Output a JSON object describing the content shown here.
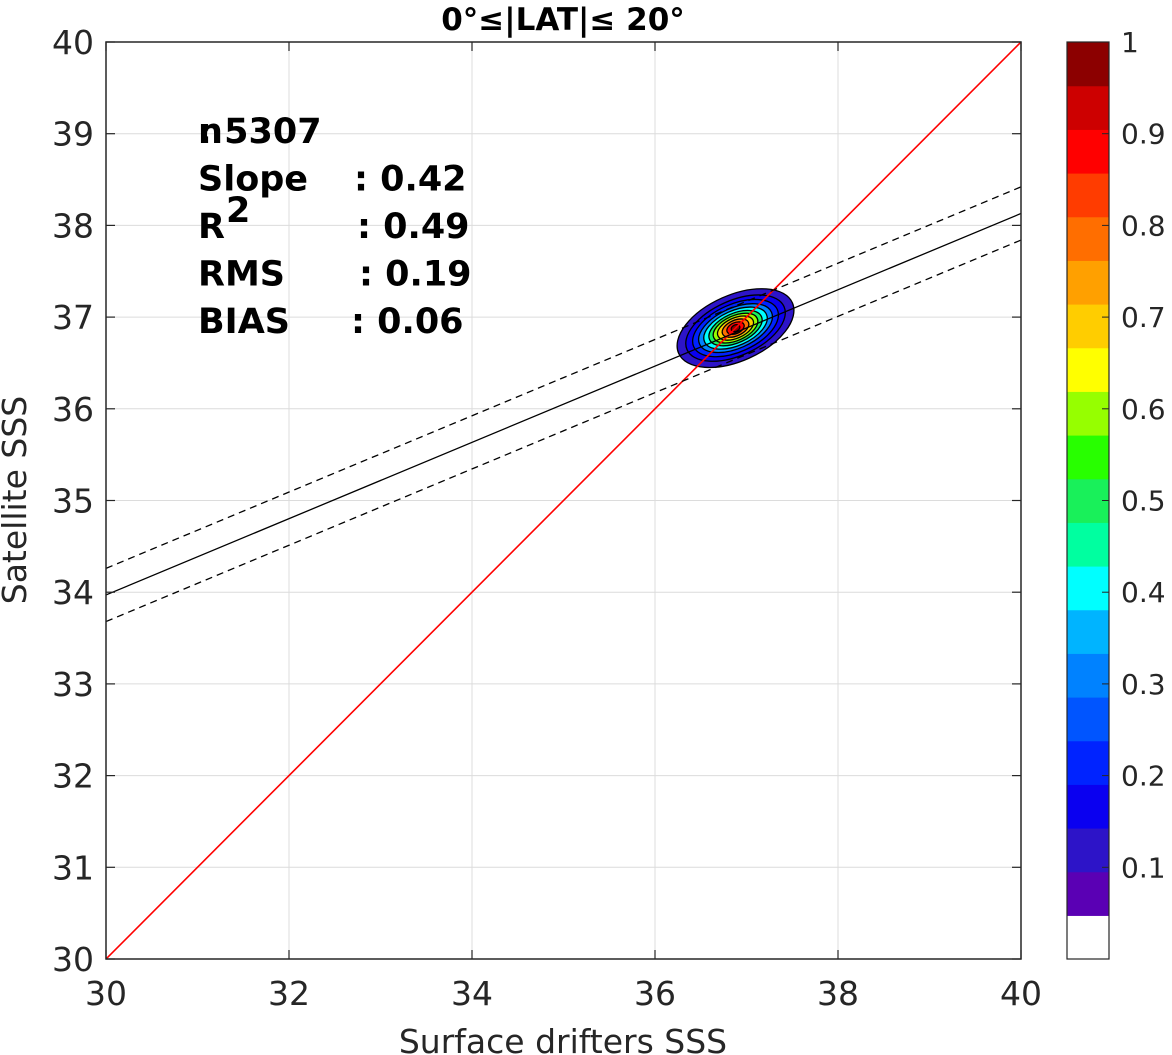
{
  "chart_data": {
    "type": "heatmap",
    "title": "0°≤|LAT|≤ 20°",
    "xlabel": "Surface drifters SSS",
    "ylabel": "Satellite SSS",
    "xlim": [
      30,
      40
    ],
    "ylim": [
      30,
      40
    ],
    "xticks": [
      "30",
      "32",
      "34",
      "36",
      "38",
      "40"
    ],
    "yticks": [
      "30",
      "31",
      "32",
      "33",
      "34",
      "35",
      "36",
      "37",
      "38",
      "39",
      "40"
    ],
    "grid": true,
    "stats": [
      {
        "label": "n",
        "value": ": 5307"
      },
      {
        "label": "Slope",
        "value": ": 0.42"
      },
      {
        "label": "R",
        "sup": "2",
        "value": ": 0.49"
      },
      {
        "label": "RMS",
        "value": ": 0.19"
      },
      {
        "label": "BIAS",
        "value": ": 0.06"
      }
    ],
    "lines": [
      {
        "name": "identity",
        "color": "#ff0000",
        "style": "solid",
        "points": [
          [
            30,
            30
          ],
          [
            40,
            40
          ]
        ]
      },
      {
        "name": "regression",
        "color": "#000000",
        "style": "solid",
        "points": [
          [
            30,
            33.97
          ],
          [
            40,
            38.13
          ]
        ]
      },
      {
        "name": "upper-bound",
        "color": "#000000",
        "style": "dashed",
        "points": [
          [
            30,
            34.26
          ],
          [
            40,
            38.42
          ]
        ]
      },
      {
        "name": "lower-bound",
        "color": "#000000",
        "style": "dashed",
        "points": [
          [
            30,
            33.68
          ],
          [
            40,
            37.84
          ]
        ]
      }
    ],
    "density": {
      "center": [
        36.88,
        36.88
      ],
      "rotation_deg": 24,
      "levels": [
        {
          "value": 0.05,
          "rx": 0.68,
          "ry": 0.36
        },
        {
          "value": 0.1,
          "rx": 0.58,
          "ry": 0.3
        },
        {
          "value": 0.15,
          "rx": 0.5,
          "ry": 0.26
        },
        {
          "value": 0.25,
          "rx": 0.43,
          "ry": 0.22
        },
        {
          "value": 0.35,
          "rx": 0.37,
          "ry": 0.19
        },
        {
          "value": 0.45,
          "rx": 0.31,
          "ry": 0.16
        },
        {
          "value": 0.55,
          "rx": 0.26,
          "ry": 0.135
        },
        {
          "value": 0.65,
          "rx": 0.21,
          "ry": 0.11
        },
        {
          "value": 0.75,
          "rx": 0.155,
          "ry": 0.085
        },
        {
          "value": 0.85,
          "rx": 0.1,
          "ry": 0.06
        },
        {
          "value": 0.95,
          "rx": 0.05,
          "ry": 0.035
        }
      ]
    },
    "colorbar": {
      "colors": [
        "#ffffff",
        "#5a00b4",
        "#2d14c8",
        "#0a00f0",
        "#0023ff",
        "#0055ff",
        "#0082ff",
        "#00b4ff",
        "#00ffff",
        "#00ffa0",
        "#19f05a",
        "#28ff00",
        "#96ff00",
        "#ffff00",
        "#ffcd00",
        "#ffa000",
        "#ff6e00",
        "#ff3c00",
        "#ff0000",
        "#cd0000",
        "#8c0000"
      ],
      "range": [
        0,
        1
      ],
      "tick_values": [
        1,
        0.9,
        0.8,
        0.7,
        0.6,
        0.5,
        0.4,
        0.3,
        0.2,
        0.1
      ],
      "tick_labels": [
        "1",
        "0.9",
        "0.8",
        "0.7",
        "0.6",
        "0.5",
        "0.4",
        "0.3",
        "0.2",
        "0.1"
      ]
    }
  }
}
